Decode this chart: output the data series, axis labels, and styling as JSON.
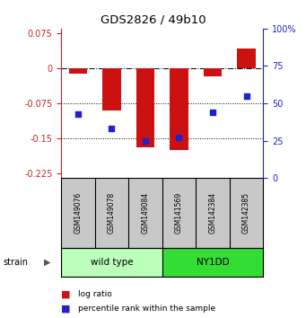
{
  "title": "GDS2826 / 49b10",
  "samples": [
    "GSM149076",
    "GSM149078",
    "GSM149084",
    "GSM141569",
    "GSM142384",
    "GSM142385"
  ],
  "log_ratios": [
    -0.012,
    -0.09,
    -0.17,
    -0.175,
    -0.018,
    0.042
  ],
  "percentile_ranks": [
    43,
    33,
    25,
    27,
    44,
    55
  ],
  "group_colors": [
    "#bbffbb",
    "#33dd33"
  ],
  "bar_color": "#cc1111",
  "dot_color": "#2222cc",
  "ylim_left": [
    -0.235,
    0.085
  ],
  "ylim_right": [
    0,
    100
  ],
  "yticks_left": [
    0.075,
    0,
    -0.075,
    -0.15,
    -0.225
  ],
  "yticks_right": [
    100,
    75,
    50,
    25,
    0
  ],
  "dotted_lines": [
    -0.075,
    -0.15
  ],
  "bg_color": "#ffffff",
  "bar_width": 0.55,
  "legend_red_label": "log ratio",
  "legend_blue_label": "percentile rank within the sample",
  "left_color": "#cc2222",
  "right_color": "#2222cc"
}
